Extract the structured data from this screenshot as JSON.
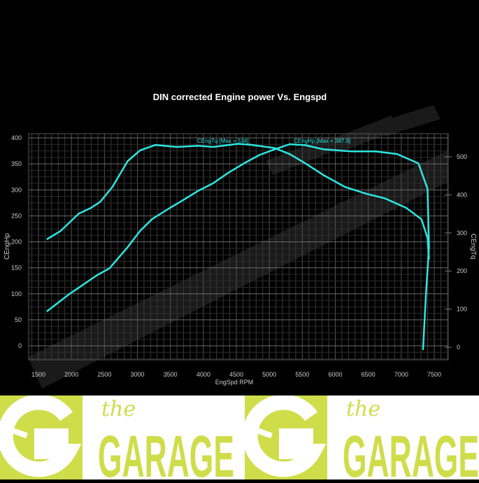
{
  "chart_data": {
    "type": "line",
    "title": "DIN corrected Engine power Vs. Engspd",
    "xlabel": "EngSpd RPM",
    "ylabel_left": "CEngHp",
    "ylabel_right": "CEngTq",
    "xlim": [
      1500,
      7500
    ],
    "ylim_left": [
      0,
      400
    ],
    "ylim_right": [
      0,
      500
    ],
    "x_ticks": [
      "1500",
      "2000",
      "2500",
      "3000",
      "3500",
      "4000",
      "4500",
      "5000",
      "5500",
      "6000",
      "6500",
      "7000",
      "7500"
    ],
    "y_ticks_left": [
      "0",
      "50",
      "100",
      "150",
      "200",
      "250",
      "300",
      "350",
      "400"
    ],
    "y_ticks_right": [
      "0",
      "100",
      "200",
      "300",
      "400",
      "500"
    ],
    "grid": true,
    "series": [
      {
        "name": "CEngHp",
        "axis": "left",
        "annotation": "CEngHp [Max = 387.9]",
        "color": "#2ee6e0",
        "x": [
          1625,
          1973,
          2390,
          2576,
          2854,
          3040,
          3225,
          3503,
          3689,
          3920,
          4150,
          4380,
          4616,
          4848,
          5080,
          5310,
          5543,
          5820,
          6239,
          6610,
          6935,
          7260,
          7398,
          7420,
          7375,
          7329
        ],
        "y": [
          66,
          100,
          136,
          149,
          190,
          221,
          244,
          266,
          280,
          298,
          313,
          333,
          351,
          367,
          378,
          387.9,
          386,
          378,
          374,
          374,
          369,
          351,
          302,
          190,
          100,
          -8
        ]
      },
      {
        "name": "CEngTq",
        "axis": "right",
        "annotation": "CEngTq [Max = 534]",
        "color": "#2ee6e0",
        "x": [
          1625,
          1834,
          2112,
          2298,
          2437,
          2622,
          2854,
          3040,
          3272,
          3596,
          3920,
          4150,
          4520,
          4700,
          5080,
          5310,
          5543,
          5820,
          6146,
          6470,
          6749,
          7074,
          7306,
          7398,
          7420
        ],
        "y": [
          283,
          305,
          351,
          366,
          382,
          421,
          489,
          517,
          531,
          526,
          529,
          526,
          534,
          532,
          523,
          507,
          483,
          452,
          421,
          403,
          391,
          366,
          336,
          287,
          231
        ]
      }
    ]
  },
  "banner": {
    "brand_small": "the",
    "brand_large": "GARAGE",
    "color": "#cfdd4b"
  }
}
